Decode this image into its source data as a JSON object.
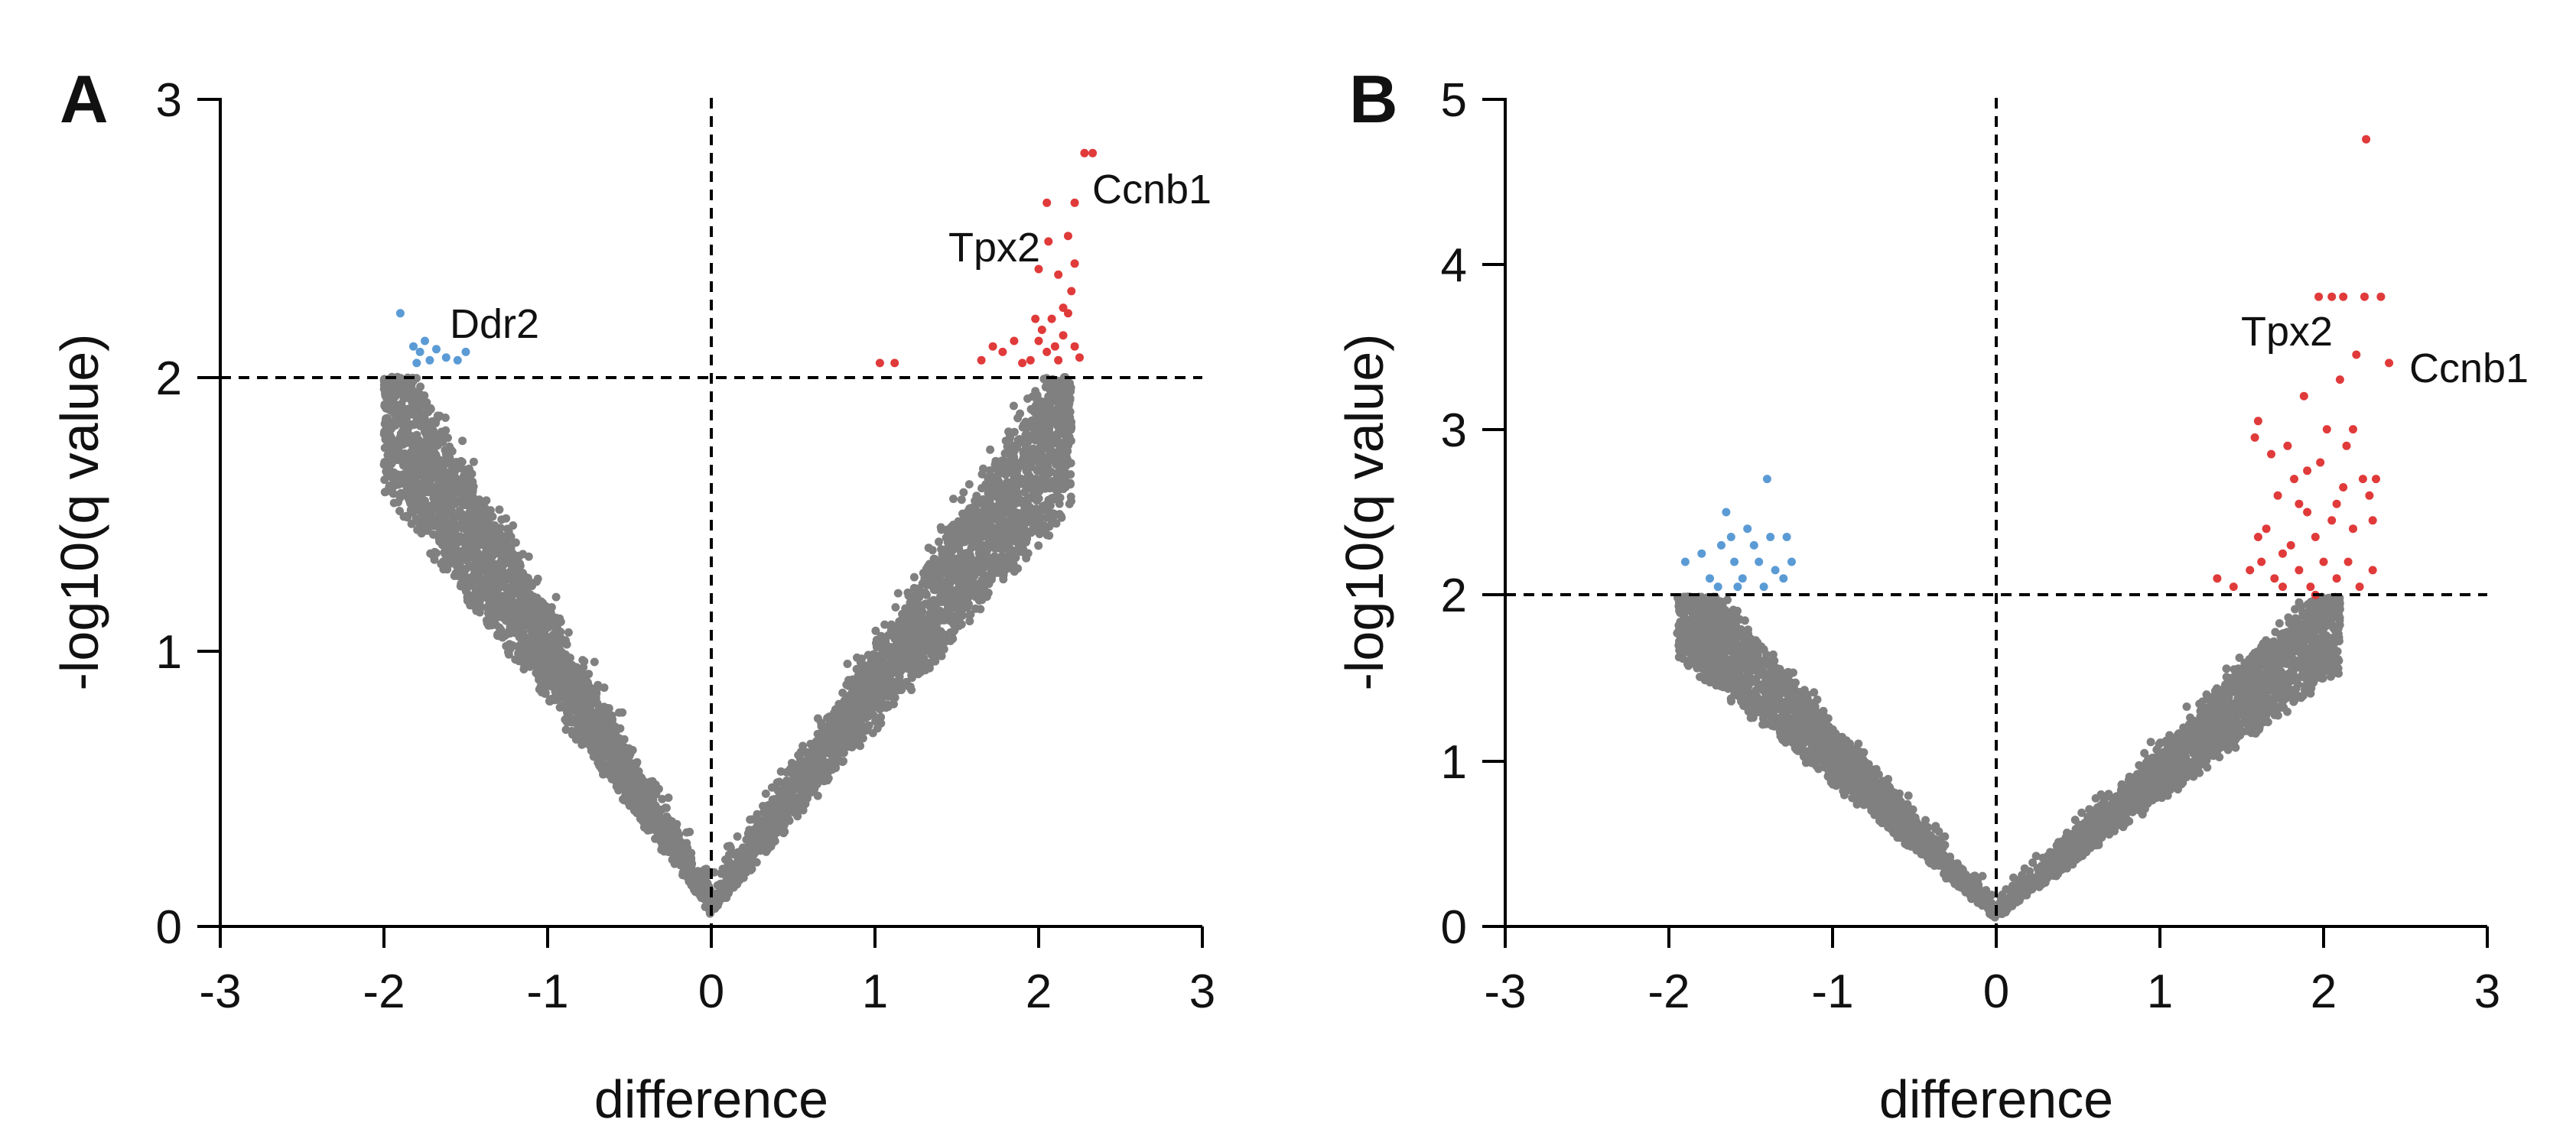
{
  "colors": {
    "non_significant": "#7f807f",
    "down_significant": "#5b9bd5",
    "up_significant": "#e03a3a"
  },
  "chart_data": [
    {
      "panel": "A",
      "type": "scatter",
      "title": "",
      "xlabel": "difference",
      "ylabel": "-log10(q value)",
      "xlim": [
        -3,
        3
      ],
      "ylim": [
        0,
        3
      ],
      "xticks": [
        -3,
        -2,
        -1,
        0,
        1,
        2,
        3
      ],
      "xtick_labels": [
        "-3",
        "-2",
        "-1",
        "0",
        "1",
        "2",
        "3"
      ],
      "yticks": [
        0,
        1,
        2,
        3
      ],
      "ytick_labels": [
        "0",
        "1",
        "2",
        "3"
      ],
      "grid": false,
      "threshold_y": 2,
      "threshold_x": 0,
      "cloud": {
        "count": 5200,
        "left_slope": 1.05,
        "right_slope": 0.92,
        "left_extent": 2.0,
        "right_extent": 2.2
      },
      "down_points": [
        [
          -1.9,
          2.22
        ],
        [
          -1.82,
          2.1
        ],
        [
          -1.78,
          2.08
        ],
        [
          -1.75,
          2.12
        ],
        [
          -1.72,
          2.05
        ],
        [
          -1.68,
          2.09
        ],
        [
          -1.8,
          2.04
        ],
        [
          -1.62,
          2.06
        ],
        [
          -1.55,
          2.05
        ],
        [
          -1.5,
          2.08
        ]
      ],
      "up_points": [
        [
          1.03,
          2.04
        ],
        [
          1.12,
          2.04
        ],
        [
          1.65,
          2.05
        ],
        [
          1.72,
          2.1
        ],
        [
          1.78,
          2.08
        ],
        [
          1.85,
          2.12
        ],
        [
          1.9,
          2.04
        ],
        [
          1.95,
          2.05
        ],
        [
          2.0,
          2.12
        ],
        [
          2.02,
          2.16
        ],
        [
          2.05,
          2.08
        ],
        [
          2.08,
          2.2
        ],
        [
          2.1,
          2.1
        ],
        [
          2.12,
          2.05
        ],
        [
          2.15,
          2.14
        ],
        [
          2.18,
          2.22
        ],
        [
          2.22,
          2.1
        ],
        [
          2.25,
          2.06
        ],
        [
          2.2,
          2.3
        ],
        [
          2.22,
          2.4
        ],
        [
          2.0,
          2.38
        ],
        [
          2.06,
          2.48
        ],
        [
          2.12,
          2.36
        ],
        [
          2.18,
          2.5
        ],
        [
          2.05,
          2.62
        ],
        [
          2.22,
          2.62
        ],
        [
          2.28,
          2.8
        ],
        [
          2.33,
          2.8
        ],
        [
          2.15,
          2.24
        ],
        [
          1.98,
          2.2
        ]
      ],
      "annotations": [
        {
          "label": "Ddr2",
          "x": -1.6,
          "y": 2.18
        },
        {
          "label": "Tpx2",
          "x": 1.45,
          "y": 2.44
        },
        {
          "label": "Ccnb1",
          "x": 2.35,
          "y": 2.66
        }
      ]
    },
    {
      "panel": "B",
      "type": "scatter",
      "title": "",
      "xlabel": "difference",
      "ylabel": "-log10(q value)",
      "xlim": [
        -3,
        3
      ],
      "ylim": [
        0,
        5
      ],
      "xticks": [
        -3,
        -2,
        -1,
        0,
        1,
        2,
        3
      ],
      "xtick_labels": [
        "-3",
        "-2",
        "-1",
        "0",
        "1",
        "2",
        "3"
      ],
      "yticks": [
        0,
        1,
        2,
        3,
        4,
        5
      ],
      "ytick_labels": [
        "0",
        "1",
        "2",
        "3",
        "4",
        "5"
      ],
      "grid": false,
      "threshold_y": 2,
      "threshold_x": 0,
      "cloud": {
        "count": 4200,
        "left_slope": 1.12,
        "right_slope": 0.98,
        "left_extent": 1.95,
        "right_extent": 2.1
      },
      "down_points": [
        [
          -1.9,
          2.2
        ],
        [
          -1.8,
          2.25
        ],
        [
          -1.75,
          2.1
        ],
        [
          -1.7,
          2.05
        ],
        [
          -1.65,
          2.5
        ],
        [
          -1.62,
          2.35
        ],
        [
          -1.6,
          2.2
        ],
        [
          -1.55,
          2.1
        ],
        [
          -1.52,
          2.4
        ],
        [
          -1.48,
          2.3
        ],
        [
          -1.45,
          2.2
        ],
        [
          -1.42,
          2.05
        ],
        [
          -1.4,
          2.7
        ],
        [
          -1.38,
          2.35
        ],
        [
          -1.35,
          2.15
        ],
        [
          -1.3,
          2.1
        ],
        [
          -1.28,
          2.35
        ],
        [
          -1.25,
          2.2
        ],
        [
          -1.58,
          2.05
        ],
        [
          -1.68,
          2.3
        ]
      ],
      "up_points": [
        [
          1.35,
          2.1
        ],
        [
          1.45,
          2.05
        ],
        [
          1.55,
          2.15
        ],
        [
          1.58,
          2.95
        ],
        [
          1.6,
          3.05
        ],
        [
          1.62,
          2.2
        ],
        [
          1.65,
          2.4
        ],
        [
          1.7,
          2.1
        ],
        [
          1.72,
          2.6
        ],
        [
          1.75,
          2.25
        ],
        [
          1.78,
          2.9
        ],
        [
          1.8,
          2.3
        ],
        [
          1.82,
          2.7
        ],
        [
          1.85,
          2.15
        ],
        [
          1.88,
          3.2
        ],
        [
          1.9,
          2.5
        ],
        [
          1.92,
          2.05
        ],
        [
          1.95,
          2.35
        ],
        [
          1.98,
          2.8
        ],
        [
          2.0,
          2.2
        ],
        [
          2.02,
          3.0
        ],
        [
          2.05,
          2.45
        ],
        [
          2.08,
          2.1
        ],
        [
          2.1,
          3.3
        ],
        [
          2.12,
          2.65
        ],
        [
          2.14,
          2.9
        ],
        [
          2.15,
          2.2
        ],
        [
          2.18,
          2.4
        ],
        [
          2.2,
          3.45
        ],
        [
          2.22,
          2.05
        ],
        [
          2.24,
          2.7
        ],
        [
          2.25,
          3.8
        ],
        [
          2.28,
          2.6
        ],
        [
          2.3,
          2.15
        ],
        [
          2.32,
          2.7
        ],
        [
          1.97,
          3.8
        ],
        [
          2.05,
          3.8
        ],
        [
          2.12,
          3.8
        ],
        [
          2.35,
          3.8
        ],
        [
          2.26,
          4.75
        ],
        [
          2.4,
          3.4
        ],
        [
          1.85,
          2.55
        ],
        [
          1.75,
          2.05
        ],
        [
          2.08,
          2.55
        ],
        [
          2.18,
          3.0
        ],
        [
          1.68,
          2.85
        ],
        [
          1.9,
          2.75
        ],
        [
          2.3,
          2.45
        ],
        [
          1.6,
          2.35
        ],
        [
          1.95,
          2.0
        ]
      ],
      "annotations": [
        {
          "label": "Tpx2",
          "x": 1.5,
          "y": 3.56
        },
        {
          "label": "Ccnb1",
          "x": 2.5,
          "y": 3.35
        }
      ]
    }
  ]
}
